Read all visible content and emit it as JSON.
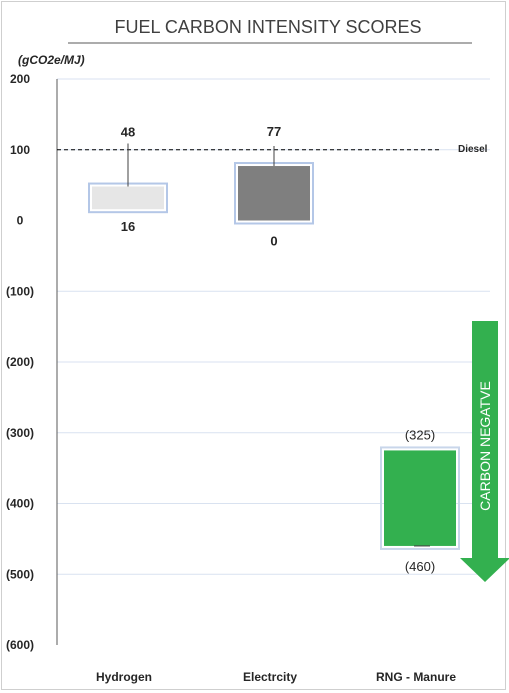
{
  "chart_data": {
    "type": "bar",
    "subtype": "floating-range",
    "title": "FUEL CARBON INTENSITY SCORES",
    "ylabel": "(gCO2e/MJ)",
    "ylim": [
      -600,
      200
    ],
    "yticks": [
      200,
      100,
      0,
      -100,
      -200,
      -300,
      -400,
      -500,
      -600
    ],
    "ytick_labels": [
      "200",
      "100",
      "0",
      "(100)",
      "(200)",
      "(300)",
      "(400)",
      "(500)",
      "(600)"
    ],
    "grid": true,
    "categories": [
      "Hydrogen",
      "Electrcity",
      "RNG - Manure"
    ],
    "ranges": [
      {
        "low": 16,
        "high": 48,
        "low_label": "16",
        "high_label": "48",
        "color": "#e6e6e6"
      },
      {
        "low": 0,
        "high": 77,
        "low_label": "0",
        "high_label": "77",
        "color": "#7f7f7f"
      },
      {
        "low": -460,
        "high": -325,
        "low_label": "(460)",
        "high_label": "(325)",
        "color": "#33b04f"
      }
    ],
    "reference_line": {
      "value": 100,
      "label": "Diesel"
    },
    "annotation": {
      "text": "CARBON NEGATVE",
      "color": "#33b04f"
    }
  }
}
